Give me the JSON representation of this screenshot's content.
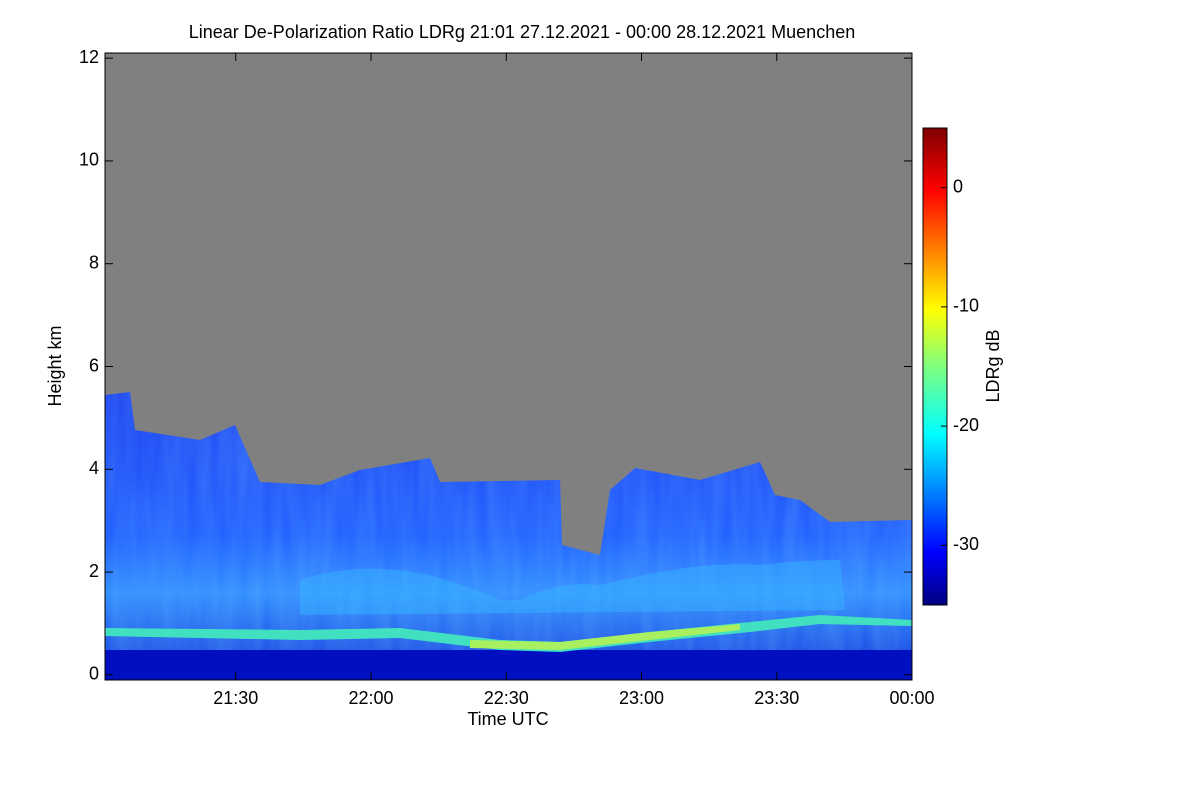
{
  "chart_data": {
    "type": "heatmap",
    "title": "Linear De-Polarization Ratio LDRg   21:01 27.12.2021 - 00:00 28.12.2021 Muenchen",
    "xlabel": "Time UTC",
    "ylabel": "Height km",
    "xlim": [
      1261,
      1440
    ],
    "xticks": [
      {
        "value": 1290,
        "label": "21:30"
      },
      {
        "value": 1320,
        "label": "22:00"
      },
      {
        "value": 1350,
        "label": "22:30"
      },
      {
        "value": 1380,
        "label": "23:00"
      },
      {
        "value": 1410,
        "label": "23:30"
      },
      {
        "value": 1440,
        "label": "00:00"
      }
    ],
    "ylim": [
      -0.1,
      12.1
    ],
    "yticks": [
      0,
      2,
      4,
      6,
      8,
      10,
      12
    ],
    "colorbar_label": "LDRg dB",
    "clim": [
      -35,
      5
    ],
    "cticks": [
      0,
      -10,
      -20,
      -30
    ]
  }
}
